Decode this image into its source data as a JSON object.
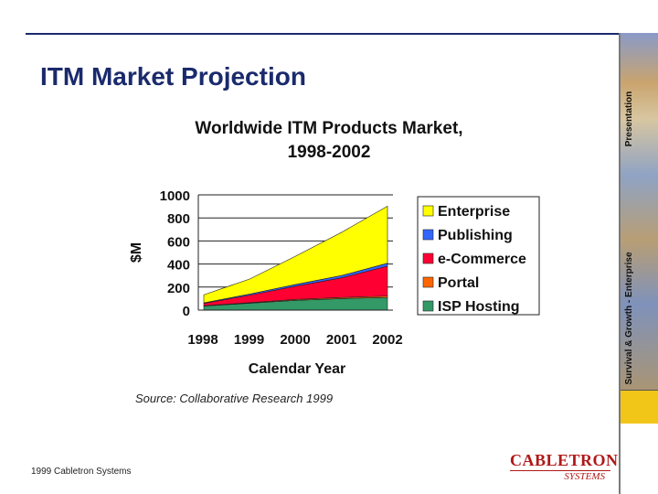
{
  "slide": {
    "title": "ITM Market Projection",
    "source": "Source: Collaborative Research 1999",
    "footer": "1999 Cabletron Systems",
    "logo_top": "CABLETRON",
    "logo_bottom": "SYSTEMS",
    "side_label_top": "Presentation",
    "side_label_bottom": "Survival & Growth - Enterprise"
  },
  "chart_data": {
    "type": "area",
    "stacked": true,
    "title": "Worldwide ITM Products Market, 1998-2002",
    "title_lines": [
      "Worldwide ITM Products Market,",
      "1998-2002"
    ],
    "xlabel": "Calendar Year",
    "ylabel": "$M",
    "x": [
      "1998",
      "1999",
      "2000",
      "2001",
      "2002"
    ],
    "ylim": [
      0,
      1000
    ],
    "yticks": [
      "0",
      "200",
      "400",
      "600",
      "800",
      "1000"
    ],
    "grid": true,
    "legend_position": "right",
    "series": [
      {
        "name": "ISP Hosting",
        "color": "#339966",
        "values": [
          35,
          60,
          85,
          100,
          110
        ]
      },
      {
        "name": "Portal",
        "color": "#ff6600",
        "values": [
          3,
          5,
          8,
          10,
          12
        ]
      },
      {
        "name": "e-Commerce",
        "color": "#ff0033",
        "values": [
          20,
          65,
          115,
          170,
          260
        ]
      },
      {
        "name": "Publishing",
        "color": "#3366ff",
        "values": [
          5,
          10,
          15,
          20,
          25
        ]
      },
      {
        "name": "Enterprise",
        "color": "#ffff00",
        "values": [
          70,
          130,
          245,
          375,
          495
        ]
      }
    ],
    "legend_order": [
      "Enterprise",
      "Publishing",
      "e-Commerce",
      "Portal",
      "ISP Hosting"
    ]
  }
}
